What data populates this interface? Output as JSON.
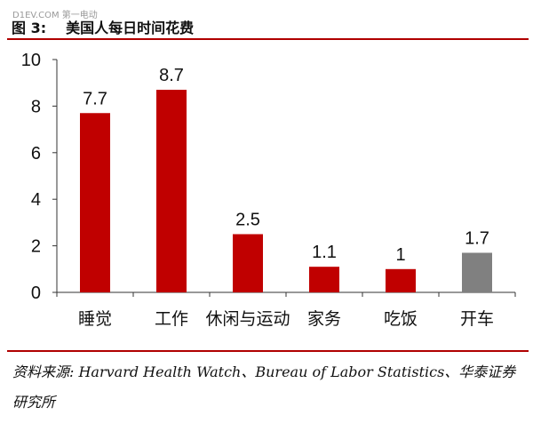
{
  "watermark": "D1EV.COM 第一电动",
  "figure": {
    "number": "图 3:",
    "title": "美国人每日时间花费"
  },
  "source_text": "资料来源: Harvard Health Watch、Bureau of Labor Statistics、华泰证券研究所",
  "colors": {
    "primary_bar": "#c00000",
    "highlight_bar": "#808080",
    "rule": "#b00000"
  },
  "chart_data": {
    "type": "bar",
    "title": "美国人每日时间花费",
    "xlabel": "",
    "ylabel": "",
    "categories": [
      "睡觉",
      "工作",
      "休闲与运动",
      "家务",
      "吃饭",
      "开车"
    ],
    "values": [
      7.7,
      8.7,
      2.5,
      1.1,
      1,
      1.7
    ],
    "value_labels": [
      "7.7",
      "8.7",
      "2.5",
      "1.1",
      "1",
      "1.7"
    ],
    "ylim": [
      0,
      10
    ],
    "yticks": [
      0,
      2,
      4,
      6,
      8,
      10
    ],
    "highlight_index": 5,
    "grid": false,
    "legend": "none"
  }
}
